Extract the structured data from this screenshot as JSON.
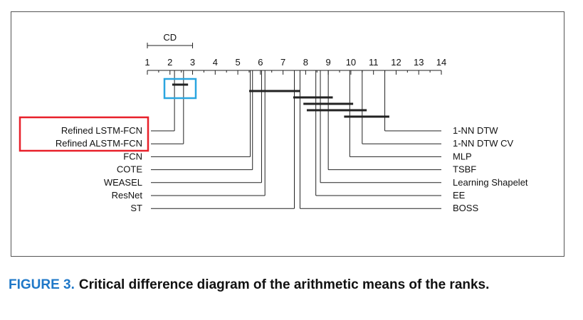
{
  "diagram": {
    "cd_label": "CD",
    "cd_span": [
      1,
      3
    ],
    "axis_ticks": [
      "1",
      "2",
      "3",
      "4",
      "5",
      "6",
      "7",
      "8",
      "9",
      "10",
      "11",
      "12",
      "13",
      "14"
    ],
    "axis_min": 1,
    "axis_max": 14,
    "left_methods": [
      {
        "name": "Refined LSTM-FCN",
        "rank": 2.2
      },
      {
        "name": "Refined ALSTM-FCN",
        "rank": 2.6
      },
      {
        "name": "FCN",
        "rank": 5.55
      },
      {
        "name": "COTE",
        "rank": 5.65
      },
      {
        "name": "WEASEL",
        "rank": 6.05
      },
      {
        "name": "ResNet",
        "rank": 6.2
      },
      {
        "name": "ST",
        "rank": 7.5
      }
    ],
    "right_methods": [
      {
        "name": "1-NN DTW",
        "rank": 11.5
      },
      {
        "name": "1-NN DTW CV",
        "rank": 10.5
      },
      {
        "name": "MLP",
        "rank": 9.95
      },
      {
        "name": "TSBF",
        "rank": 9.0
      },
      {
        "name": "Learning Shapelet",
        "rank": 8.65
      },
      {
        "name": "EE",
        "rank": 8.45
      },
      {
        "name": "BOSS",
        "rank": 7.75
      }
    ],
    "clique_bars": [
      [
        2.1,
        2.8
      ],
      [
        5.5,
        7.75
      ],
      [
        7.45,
        9.2
      ],
      [
        7.9,
        10.1
      ],
      [
        8.05,
        10.7
      ],
      [
        9.7,
        11.7
      ]
    ],
    "highlight_colors": {
      "left_labels": "#e8202a",
      "top_pair": "#2ba6e0"
    }
  },
  "caption": {
    "label": "FIGURE 3.",
    "text": "Critical difference diagram of the arithmetic means of the ranks."
  }
}
